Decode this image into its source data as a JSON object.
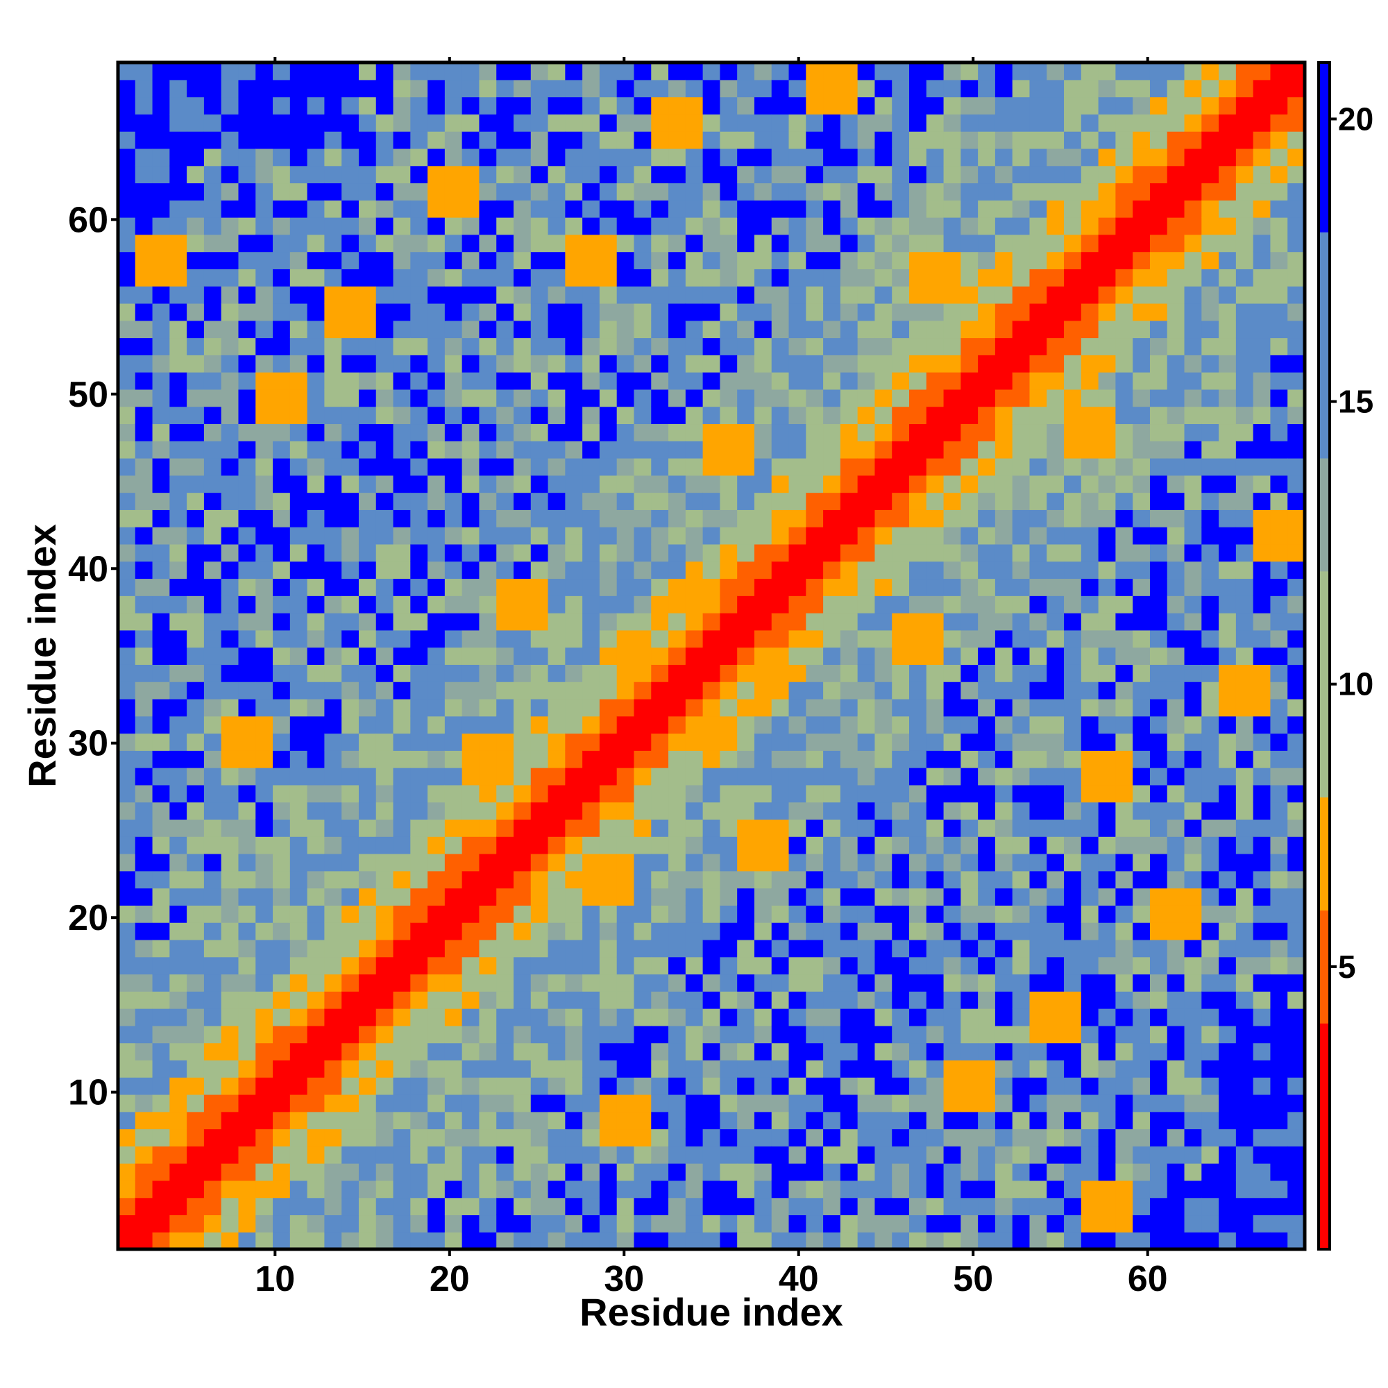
{
  "chart_data": {
    "type": "heatmap",
    "title": "",
    "xlabel": "Residue index",
    "ylabel": "Residue index",
    "n_residues": 69,
    "xlim": [
      1,
      69
    ],
    "ylim": [
      1,
      69
    ],
    "x_ticks": [
      "10",
      "20",
      "30",
      "40",
      "50",
      "60"
    ],
    "y_ticks": [
      "10",
      "20",
      "30",
      "40",
      "50",
      "60"
    ],
    "colorbar_ticks": [
      "5",
      "10",
      "15",
      "20"
    ],
    "colorbar_range": [
      0,
      21
    ],
    "color_bins": [
      {
        "max": 4,
        "color": "#ff0000"
      },
      {
        "max": 6,
        "color": "#ff6000"
      },
      {
        "max": 8,
        "color": "#ffa500"
      },
      {
        "max": 12,
        "color": "#a3bd8b"
      },
      {
        "max": 14,
        "color": "#8ea8a0"
      },
      {
        "max": 18,
        "color": "#5b8bc8"
      },
      {
        "max": 100,
        "color": "#0000ff"
      }
    ],
    "distance_model": "sequence separation with long-range contacts",
    "long_range_contacts": [
      {
        "i": 3,
        "j": 58,
        "value": 7
      },
      {
        "i": 8,
        "j": 30,
        "value": 7
      },
      {
        "i": 10,
        "j": 50,
        "value": 7
      },
      {
        "i": 14,
        "j": 55,
        "value": 7
      },
      {
        "i": 20,
        "j": 62,
        "value": 7
      },
      {
        "i": 22,
        "j": 29,
        "value": 7
      },
      {
        "i": 24,
        "j": 38,
        "value": 7
      },
      {
        "i": 28,
        "j": 58,
        "value": 7
      },
      {
        "i": 33,
        "j": 66,
        "value": 7
      },
      {
        "i": 36,
        "j": 47,
        "value": 7
      },
      {
        "i": 42,
        "j": 68,
        "value": 7
      },
      {
        "i": 48,
        "j": 57,
        "value": 7
      }
    ]
  }
}
